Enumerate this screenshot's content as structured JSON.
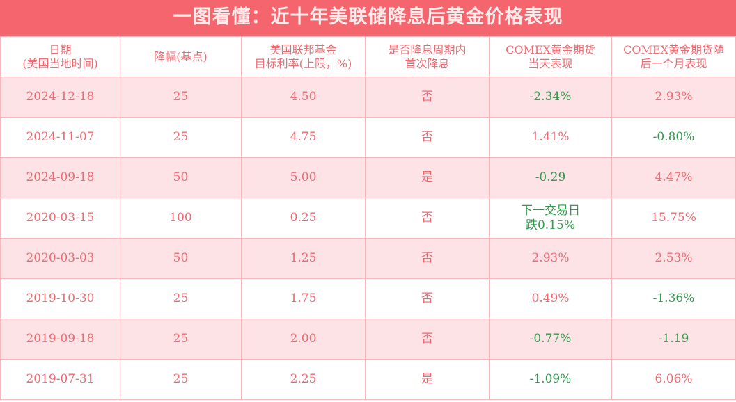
{
  "title": "一图看懂：近十年美联储降息后黄金价格表现",
  "headers": [
    [
      "日期",
      "(美国当地时间)"
    ],
    [
      "降幅(基点)",
      ""
    ],
    [
      "美国联邦基金",
      "目标利率(上限，%)"
    ],
    [
      "是否降息周期内",
      "首次降息"
    ],
    [
      "COMEX黄金期货",
      "当天表现"
    ],
    [
      "COMEX黄金期货随",
      "后一个月表现"
    ]
  ],
  "colors": {
    "header_bg": "#f5656d",
    "text": "#ee6a72",
    "negative": "#2f9a4b",
    "stripe": "#fde3e6"
  },
  "rows": [
    [
      "2024-12-18",
      "25",
      "4.50",
      "否",
      "-2.34%",
      "2.93%"
    ],
    [
      "2024-11-07",
      "25",
      "4.75",
      "否",
      "1.41%",
      "-0.80%"
    ],
    [
      "2024-09-18",
      "50",
      "5.00",
      "是",
      "-0.29",
      "4.47%"
    ],
    [
      "2020-03-15",
      "100",
      "0.25",
      "否",
      "下一交易日\n跌0.15%",
      "15.75%"
    ],
    [
      "2020-03-03",
      "50",
      "1.25",
      "否",
      "2.93%",
      "2.53%"
    ],
    [
      "2019-10-30",
      "25",
      "1.75",
      "否",
      "0.49%",
      "-1.36%"
    ],
    [
      "2019-09-18",
      "25",
      "2.00",
      "否",
      "-0.77%",
      "-1.19"
    ],
    [
      "2019-07-31",
      "25",
      "2.25",
      "是",
      "-1.09%",
      "6.06%"
    ]
  ]
}
